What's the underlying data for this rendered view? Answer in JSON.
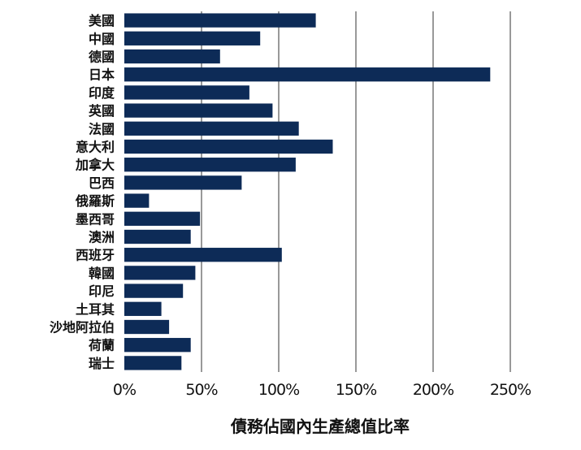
{
  "chart_data": {
    "type": "bar",
    "orientation": "horizontal",
    "title": "",
    "xlabel": "債務佔國內生產總值比率",
    "ylabel": "",
    "categories": [
      "美國",
      "中國",
      "德國",
      "日本",
      "印度",
      "英國",
      "法國",
      "意大利",
      "加拿大",
      "巴西",
      "俄羅斯",
      "墨西哥",
      "澳洲",
      "西班牙",
      "韓國",
      "印尼",
      "土耳其",
      "沙地阿拉伯",
      "荷蘭",
      "瑞士"
    ],
    "values": [
      124,
      88,
      62,
      237,
      81,
      96,
      113,
      135,
      111,
      76,
      16,
      49,
      43,
      102,
      46,
      38,
      24,
      29,
      43,
      37
    ],
    "xlim": [
      0,
      250
    ],
    "xticks": [
      0,
      50,
      100,
      150,
      200,
      250
    ],
    "xtick_labels": [
      "0%",
      "50%",
      "100%",
      "150%",
      "200%",
      "250%"
    ],
    "grid": "vertical",
    "bar_color": "#0d2b57",
    "legend": "none"
  }
}
